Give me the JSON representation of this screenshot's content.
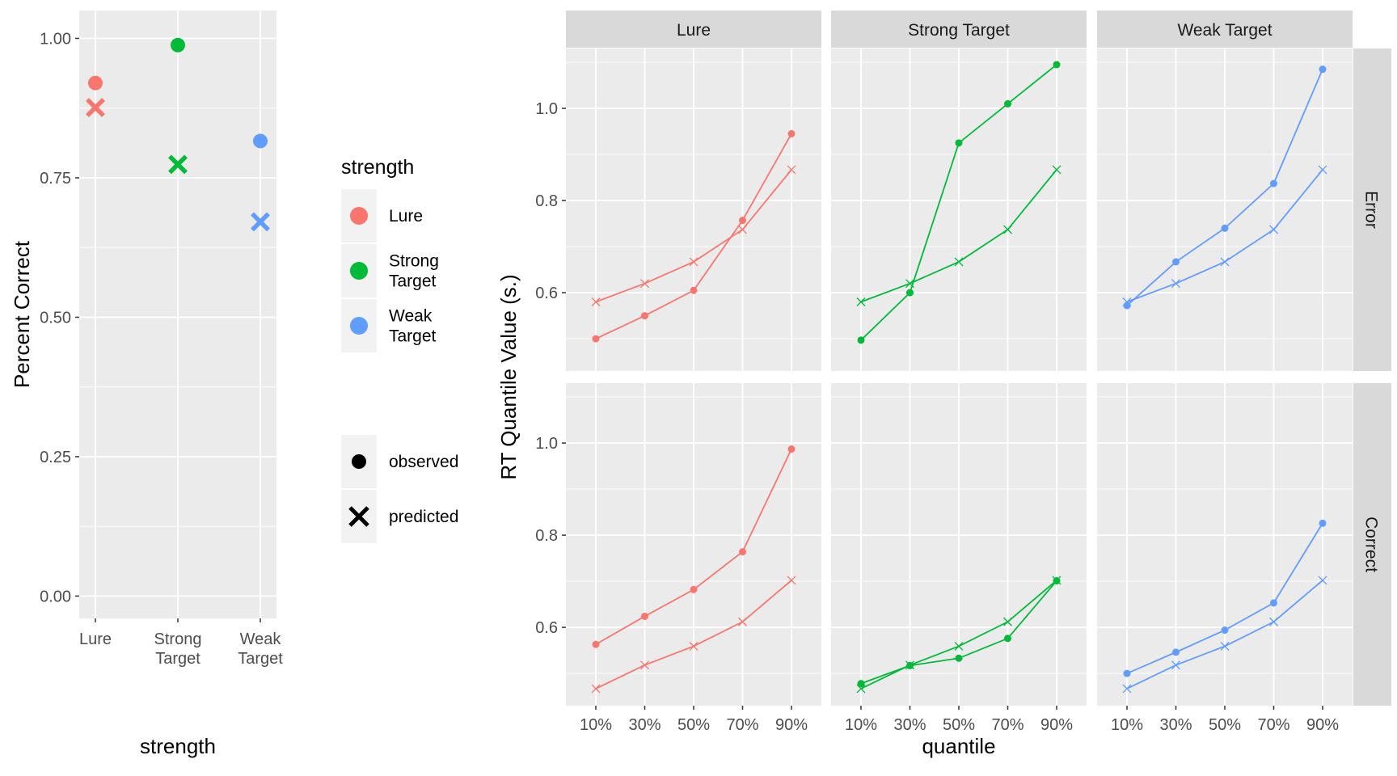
{
  "colors": {
    "Lure": "#f8766d",
    "Strong Target": "#00ba38",
    "Weak Target": "#619cff"
  },
  "chart_data": [
    {
      "type": "scatter",
      "xlabel": "strength",
      "ylabel": "Percent Correct",
      "categories": [
        "Lure",
        "Strong Target",
        "Weak Target"
      ],
      "category_labels": [
        [
          "Lure"
        ],
        [
          "Strong",
          "Target"
        ],
        [
          "Weak",
          "Target"
        ]
      ],
      "ylim": [
        -0.04,
        1.05
      ],
      "yticks": [
        0,
        0.25,
        0.5,
        0.75,
        1.0
      ],
      "ytick_labels": [
        "0.00",
        "0.25",
        "0.50",
        "0.75",
        "1.00"
      ],
      "grid": true,
      "series": [
        {
          "name": "observed",
          "values": [
            0.92,
            0.988,
            0.816
          ]
        },
        {
          "name": "predicted",
          "values": [
            0.876,
            0.774,
            0.671
          ]
        }
      ]
    },
    {
      "type": "line",
      "xlabel": "quantile",
      "ylabel": "RT Quantile Value (s.)",
      "x": [
        "10%",
        "30%",
        "50%",
        "70%",
        "90%"
      ],
      "ylim": [
        0.43,
        1.13
      ],
      "yticks": [
        0.6,
        0.8,
        1.0
      ],
      "ytick_labels": [
        "0.6",
        "0.8",
        "1.0"
      ],
      "grid": true,
      "facet_columns": [
        "Lure",
        "Strong Target",
        "Weak Target"
      ],
      "facet_rows": [
        "Error",
        "Correct"
      ],
      "panels": [
        {
          "column": "Lure",
          "row": "Error",
          "observed": [
            0.5,
            0.55,
            0.605,
            0.757,
            0.945
          ],
          "predicted": [
            0.58,
            0.62,
            0.667,
            0.737,
            0.867
          ]
        },
        {
          "column": "Strong Target",
          "row": "Error",
          "observed": [
            0.497,
            0.6,
            0.925,
            1.01,
            1.095
          ],
          "predicted": [
            0.58,
            0.62,
            0.667,
            0.737,
            0.867
          ]
        },
        {
          "column": "Weak Target",
          "row": "Error",
          "observed": [
            0.572,
            0.667,
            0.74,
            0.837,
            1.085
          ],
          "predicted": [
            0.58,
            0.62,
            0.667,
            0.737,
            0.867
          ]
        },
        {
          "column": "Lure",
          "row": "Correct",
          "observed": [
            0.563,
            0.624,
            0.682,
            0.764,
            0.987
          ],
          "predicted": [
            0.467,
            0.518,
            0.559,
            0.612,
            0.702
          ]
        },
        {
          "column": "Strong Target",
          "row": "Correct",
          "observed": [
            0.478,
            0.517,
            0.533,
            0.576,
            0.701
          ],
          "predicted": [
            0.467,
            0.518,
            0.559,
            0.612,
            0.702
          ]
        },
        {
          "column": "Weak Target",
          "row": "Correct",
          "observed": [
            0.5,
            0.546,
            0.594,
            0.653,
            0.826
          ],
          "predicted": [
            0.467,
            0.518,
            0.559,
            0.612,
            0.702
          ]
        }
      ]
    }
  ],
  "legend": {
    "colour_title": "strength",
    "colour_items": [
      {
        "key": "Lure",
        "label_lines": [
          "Lure"
        ]
      },
      {
        "key": "Strong Target",
        "label_lines": [
          "Strong",
          "Target"
        ]
      },
      {
        "key": "Weak Target",
        "label_lines": [
          "Weak",
          "Target"
        ]
      }
    ],
    "shape_items": [
      {
        "key": "observed",
        "label": "observed"
      },
      {
        "key": "predicted",
        "label": "predicted"
      }
    ]
  }
}
